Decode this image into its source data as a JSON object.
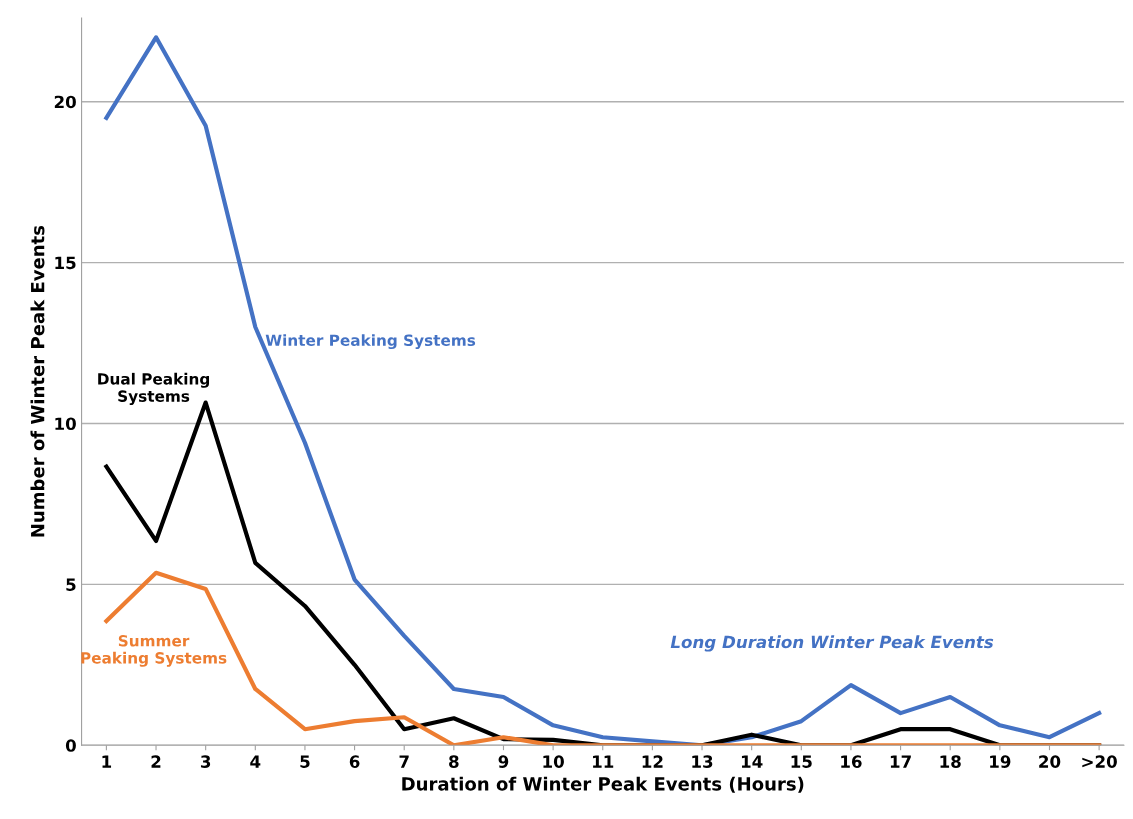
{
  "chart_data": {
    "type": "line",
    "xlabel": "Duration of Winter Peak Events (Hours)",
    "ylabel": "Number of Winter Peak Events",
    "categories": [
      "1",
      "2",
      "3",
      "4",
      "5",
      "6",
      "7",
      "8",
      "9",
      "10",
      "11",
      "12",
      "13",
      "14",
      "15",
      "16",
      "17",
      "18",
      "19",
      "20",
      ">20"
    ],
    "series": [
      {
        "name": "Winter Peaking Systems",
        "color": "#4472c4",
        "values": [
          19.5,
          22.0,
          19.25,
          13.0,
          9.4,
          5.15,
          3.4,
          1.75,
          1.5,
          0.62,
          0.25,
          0.12,
          0,
          0.25,
          0.75,
          1.87,
          1.0,
          1.5,
          0.62,
          0.25,
          1.0
        ]
      },
      {
        "name": "Dual Peaking Systems",
        "color": "#000000",
        "values": [
          8.66,
          6.35,
          10.65,
          5.67,
          4.33,
          2.5,
          0.5,
          0.84,
          0.19,
          0.17,
          0,
          0,
          0,
          0.33,
          0,
          0,
          0.5,
          0.5,
          0,
          0,
          0
        ]
      },
      {
        "name": "Summer Peaking Systems",
        "color": "#ed7d31",
        "values": [
          3.86,
          5.36,
          4.86,
          1.75,
          0.5,
          0.75,
          0.87,
          0,
          0.25,
          0,
          0,
          0,
          0,
          0,
          0,
          0,
          0,
          0,
          0,
          0,
          0
        ]
      }
    ],
    "annotations": [
      "Long Duration Winter Peak Events"
    ],
    "ylim": [
      0,
      22.6
    ],
    "yticks": [
      0,
      5,
      10,
      15,
      20
    ],
    "grid": "y",
    "legend": false,
    "marker": "none",
    "line_style": "solid"
  }
}
